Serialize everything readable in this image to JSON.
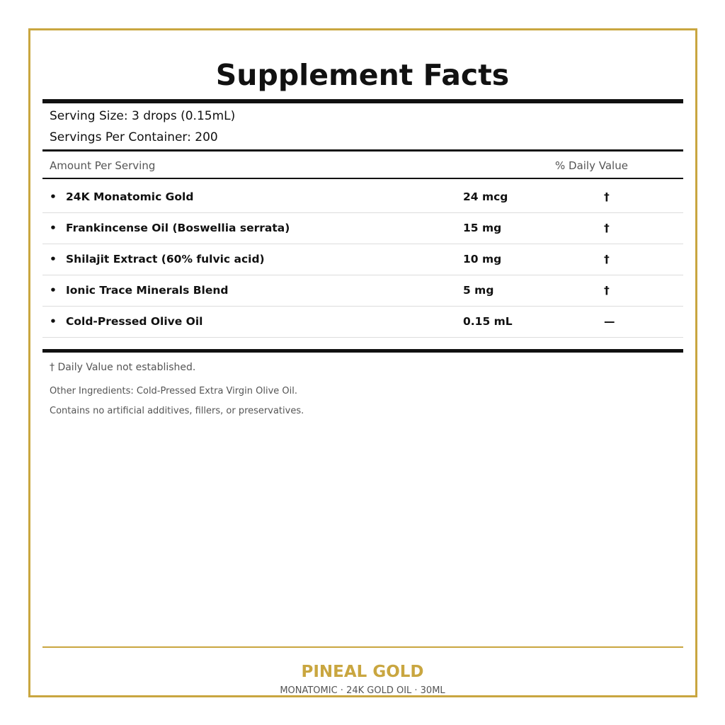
{
  "title": "Supplement Facts",
  "serving_size": "Serving Size: 3 drops (0.15mL)",
  "servings_per_container": "Servings Per Container: 200",
  "table": {
    "header_amount": "Amount Per Serving",
    "header_dv": "% Daily Value",
    "bullet": "•",
    "rows": [
      {
        "name": "24K Monatomic Gold",
        "amount": "24 mcg",
        "dv": "†"
      },
      {
        "name": "Frankincense Oil (Boswellia serrata)",
        "amount": "15 mg",
        "dv": "†"
      },
      {
        "name": "Shilajit Extract (60% fulvic acid)",
        "amount": "10 mg",
        "dv": "†"
      },
      {
        "name": "Ionic Trace Minerals Blend",
        "amount": "5 mg",
        "dv": "†"
      },
      {
        "name": "Cold-Pressed Olive Oil",
        "amount": "0.15 mL",
        "dv": "—"
      }
    ]
  },
  "footnotes": {
    "dv_note": "† Daily Value not established.",
    "other_ingredients": "Other Ingredients: Cold-Pressed Extra Virgin Olive Oil.",
    "contains": "Contains no artificial additives, fillers, or preservatives."
  },
  "brand": {
    "name": "PINEAL GOLD",
    "tagline": "MONATOMIC · 24K GOLD OIL · 30ML"
  },
  "colors": {
    "accent": "#C9A640",
    "text": "#111111",
    "muted": "#555555"
  }
}
